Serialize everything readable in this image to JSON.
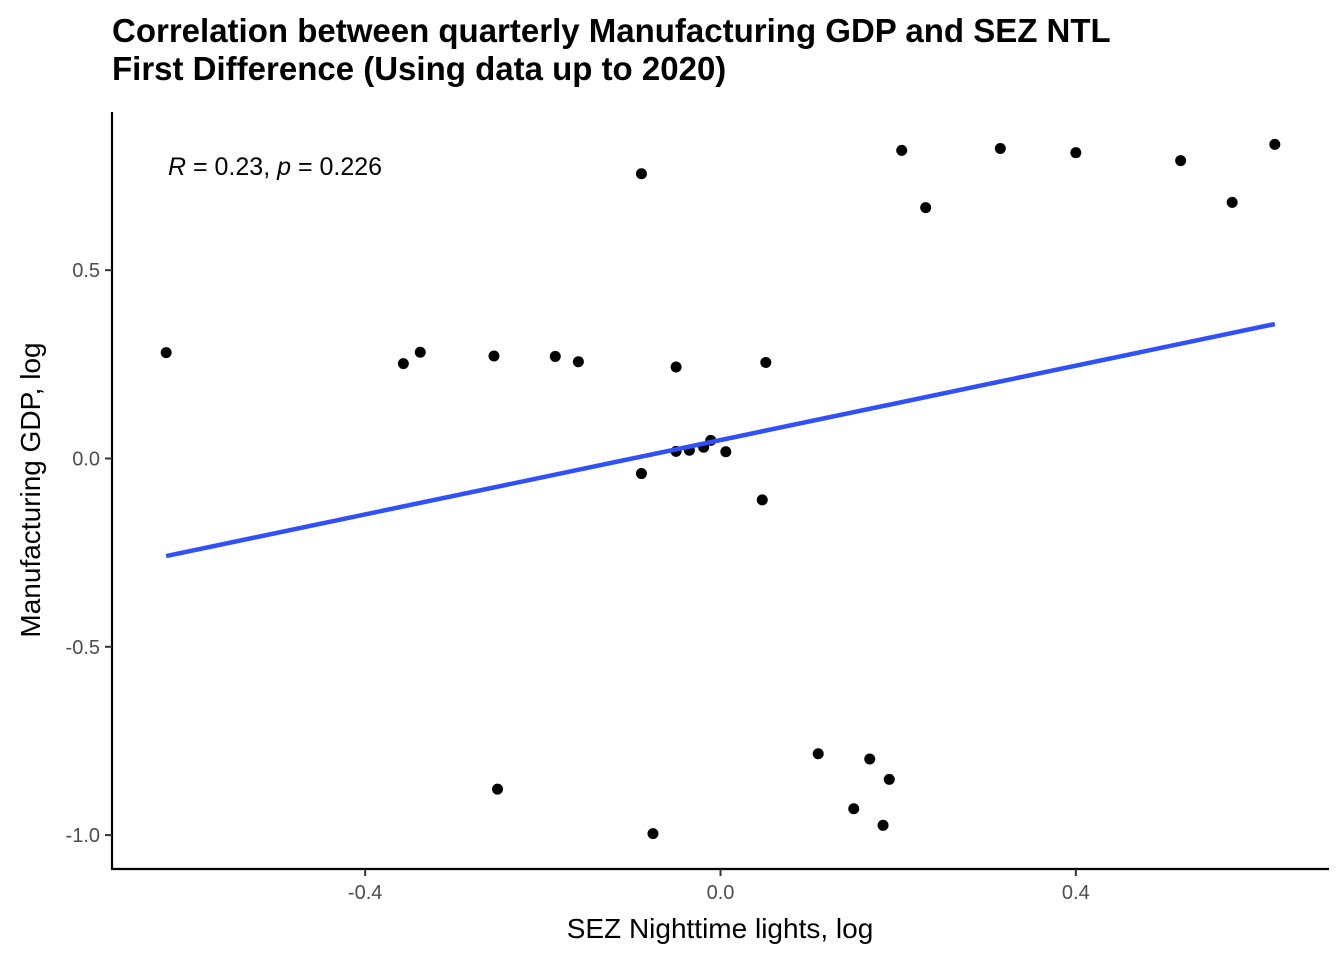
{
  "chart_data": {
    "type": "scatter",
    "title_lines": [
      "Correlation between quarterly Manufacturing GDP and SEZ NTL",
      "First Difference (Using data up to 2020)"
    ],
    "xlabel": "SEZ Nighttime lights, log",
    "ylabel": "Manufacturing GDP, log",
    "xlim": [
      -0.685,
      0.685
    ],
    "ylim": [
      -1.09,
      0.92
    ],
    "xticks": [
      {
        "value": -0.4,
        "label": "-0.4"
      },
      {
        "value": 0.0,
        "label": "0.0"
      },
      {
        "value": 0.4,
        "label": "0.4"
      }
    ],
    "yticks": [
      {
        "value": -1.0,
        "label": "-1.0"
      },
      {
        "value": -0.5,
        "label": "-0.5"
      },
      {
        "value": 0.0,
        "label": "0.0"
      },
      {
        "value": 0.5,
        "label": "0.5"
      }
    ],
    "grid": false,
    "annotation": {
      "r_symbol": "R",
      "r_text": " = 0.23, ",
      "p_symbol": "p",
      "p_text": " = 0.226"
    },
    "points": [
      {
        "x": -0.624,
        "y": 0.281
      },
      {
        "x": -0.357,
        "y": 0.252
      },
      {
        "x": -0.338,
        "y": 0.282
      },
      {
        "x": -0.255,
        "y": 0.272
      },
      {
        "x": -0.251,
        "y": -0.878
      },
      {
        "x": -0.186,
        "y": 0.271
      },
      {
        "x": -0.16,
        "y": 0.257
      },
      {
        "x": -0.089,
        "y": 0.756
      },
      {
        "x": -0.089,
        "y": -0.04
      },
      {
        "x": -0.076,
        "y": -0.996
      },
      {
        "x": -0.05,
        "y": 0.243
      },
      {
        "x": -0.05,
        "y": 0.019
      },
      {
        "x": -0.035,
        "y": 0.022
      },
      {
        "x": -0.019,
        "y": 0.03
      },
      {
        "x": -0.011,
        "y": 0.048
      },
      {
        "x": 0.006,
        "y": 0.018
      },
      {
        "x": 0.047,
        "y": -0.11
      },
      {
        "x": 0.051,
        "y": 0.255
      },
      {
        "x": 0.11,
        "y": -0.784
      },
      {
        "x": 0.15,
        "y": -0.93
      },
      {
        "x": 0.168,
        "y": -0.798
      },
      {
        "x": 0.183,
        "y": -0.974
      },
      {
        "x": 0.19,
        "y": -0.852
      },
      {
        "x": 0.204,
        "y": 0.818
      },
      {
        "x": 0.231,
        "y": 0.666
      },
      {
        "x": 0.315,
        "y": 0.823
      },
      {
        "x": 0.4,
        "y": 0.812
      },
      {
        "x": 0.518,
        "y": 0.791
      },
      {
        "x": 0.576,
        "y": 0.68
      },
      {
        "x": 0.624,
        "y": 0.834
      }
    ],
    "fit_line": {
      "x": [
        -0.624,
        0.624
      ],
      "y": [
        -0.259,
        0.357
      ],
      "color": "#3050f8"
    },
    "point_color": "#000000"
  }
}
